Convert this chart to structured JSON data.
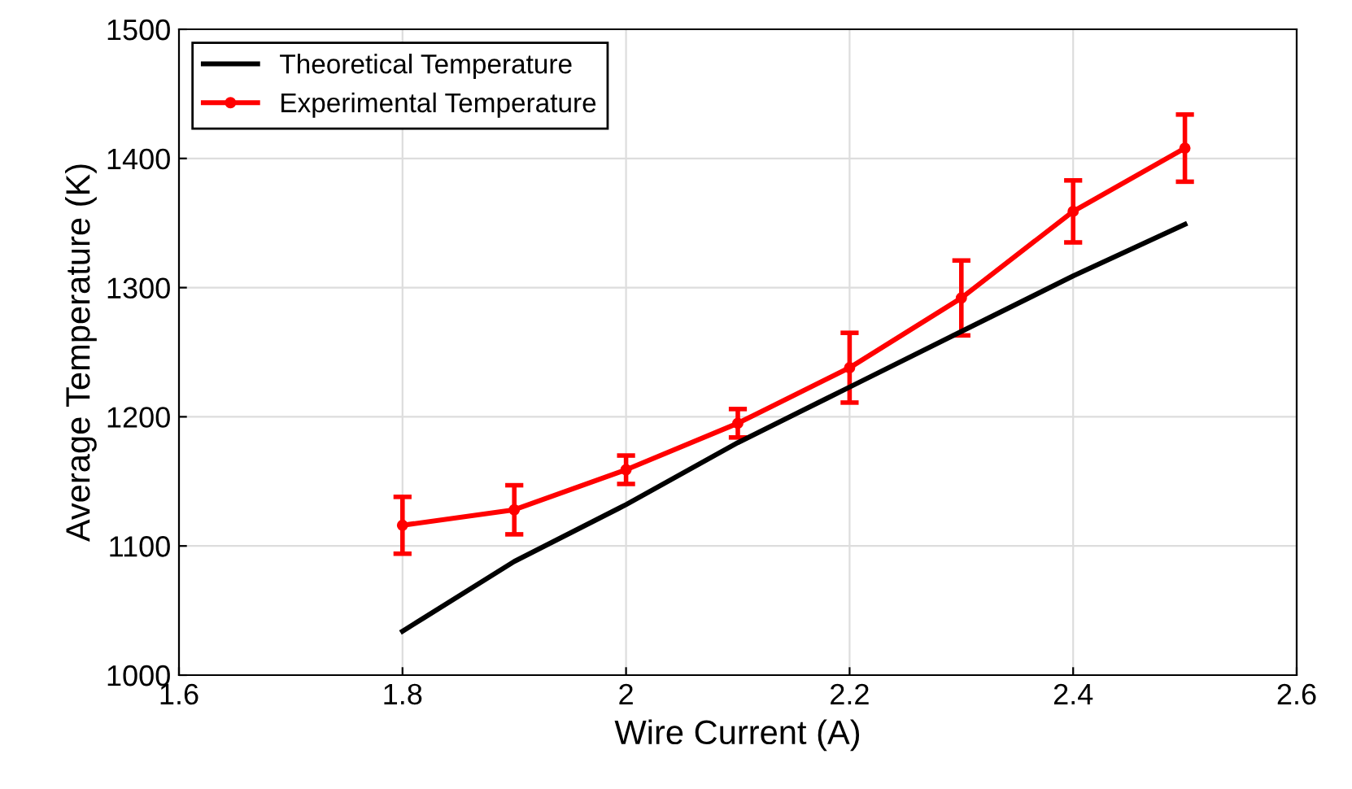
{
  "chart_data": {
    "type": "line",
    "xlabel": "Wire Current (A)",
    "ylabel": "Average Temperature (K)",
    "x": [
      1.8,
      1.9,
      2.0,
      2.1,
      2.2,
      2.3,
      2.4,
      2.5
    ],
    "series": [
      {
        "name": "Theoretical Temperature",
        "color": "#000000",
        "marker": "none",
        "values": [
          1034,
          1088,
          1132,
          1180,
          1223,
          1266,
          1309,
          1349
        ]
      },
      {
        "name": "Experimental Temperature",
        "color": "#ff0000",
        "marker": "circle",
        "values": [
          1116,
          1128,
          1159,
          1195,
          1238,
          1292,
          1359,
          1408
        ],
        "errors": [
          22,
          19,
          11,
          11,
          27,
          29,
          24,
          26
        ]
      }
    ],
    "xlim": [
      1.6,
      2.6
    ],
    "xticks": [
      1.6,
      1.8,
      2,
      2.2,
      2.4,
      2.6
    ],
    "ylim": [
      1000,
      1500
    ],
    "yticks": [
      1000,
      1100,
      1200,
      1300,
      1400,
      1500
    ],
    "grid": true,
    "legend": "top left",
    "line_style": "solid"
  }
}
